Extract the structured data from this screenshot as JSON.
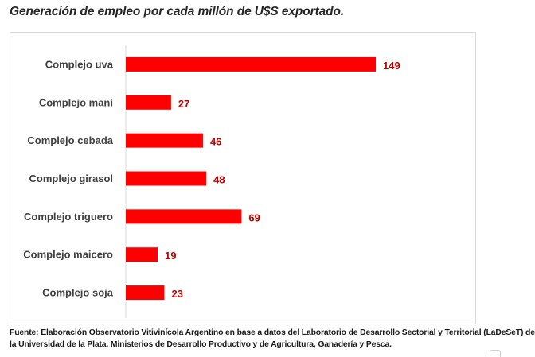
{
  "chart_data": {
    "type": "bar",
    "orientation": "horizontal",
    "title": "Generación de empleo por cada millón de U$S exportado.",
    "xlabel": "",
    "ylabel": "",
    "categories": [
      "Complejo uva",
      "Complejo maní",
      "Complejo cebada",
      "Complejo girasol",
      "Complejo triguero",
      "Complejo maicero",
      "Complejo soja"
    ],
    "values": [
      149,
      27,
      46,
      48,
      69,
      19,
      23
    ],
    "xlim": [
      0,
      149
    ],
    "grid": false,
    "legend": "none",
    "data_labels": true,
    "bar_color": "#ff0000",
    "label_color": "#c00000"
  },
  "source_text": "Fuente: Elaboración Observatorio Vitivinícola Argentino en base a datos del Laboratorio de Desarrollo Sectorial y Territorial (LaDeSeT) de la Universidad de la Plata, Ministerios de Desarrollo Productivo y de Agricultura, Ganadería y Pesca."
}
